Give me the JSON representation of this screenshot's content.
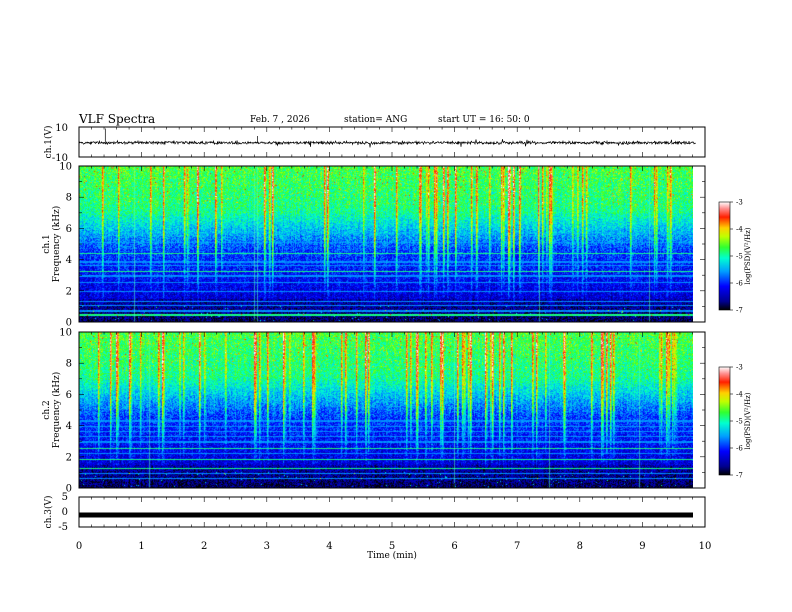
{
  "header": {
    "title": "VLF Spectra",
    "date": "Feb. 7 , 2026",
    "station": "station= ANG",
    "start_ut": "start UT = 16: 50: 0"
  },
  "chart_data": [
    {
      "type": "line",
      "name": "ch.1 waveform",
      "ylabel": "ch.1(V)",
      "ylim": [
        -10,
        10
      ],
      "y_ticks": [
        "10",
        "-10"
      ],
      "baseline": -0.5,
      "x_range_min": [
        0,
        9.85
      ]
    },
    {
      "type": "heatmap",
      "name": "ch.1 spectrogram",
      "ylabel": "ch.1",
      "ylabel2": "Frequency (kHz)",
      "ylim": [
        0,
        10
      ],
      "y_ticks": [
        "0",
        "2",
        "4",
        "6",
        "8",
        "10"
      ],
      "colorbar": {
        "label": "log(PSD)(V²/Hz)",
        "ticks": [
          "-3",
          "-4",
          "-5",
          "-6",
          "-7"
        ],
        "range": [
          -7,
          -3
        ]
      }
    },
    {
      "type": "heatmap",
      "name": "ch.2 spectrogram",
      "ylabel": "ch.2",
      "ylabel2": "Frequency (kHz)",
      "ylim": [
        0,
        10
      ],
      "y_ticks": [
        "0",
        "2",
        "4",
        "6",
        "8",
        "10"
      ],
      "colorbar": {
        "label": "log(PSD)(V²/Hz)",
        "ticks": [
          "-3",
          "-4",
          "-5",
          "-6",
          "-7"
        ],
        "range": [
          -7,
          -3
        ]
      }
    },
    {
      "type": "line",
      "name": "ch.3 waveform",
      "ylabel": "ch.3(V)",
      "ylim": [
        -5,
        5
      ],
      "y_ticks": [
        "5",
        "0",
        "-5"
      ],
      "baseline": -1.0
    }
  ],
  "x_axis": {
    "label": "Time (min)",
    "range": [
      0,
      10
    ],
    "ticks": [
      "0",
      "1",
      "2",
      "3",
      "4",
      "5",
      "6",
      "7",
      "8",
      "9",
      "10"
    ]
  },
  "colors": {
    "frame": "#000000",
    "waveform": "#000000",
    "line_cyan": "#33ffcc"
  }
}
